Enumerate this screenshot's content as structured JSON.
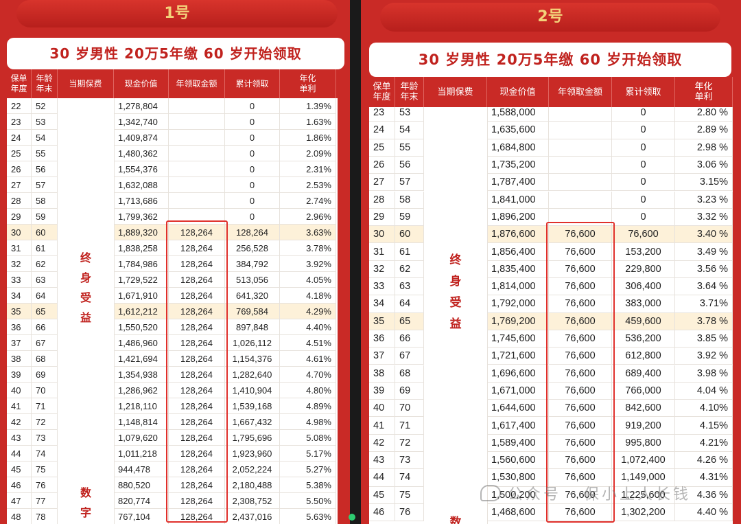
{
  "panels": [
    {
      "plan_label": "1号",
      "subtitle": "30 岁男性  20万5年缴  60 岁开始领取",
      "columns": [
        "保单\n年度",
        "年龄\n年末",
        "当期保费",
        "现金价值",
        "年领取金额",
        "累计领取",
        "年化\n单利"
      ],
      "premium_label": [
        "终",
        "身",
        "受",
        "益"
      ],
      "premium_label2": [
        "数",
        "字"
      ],
      "rows": [
        [
          "22",
          "52",
          "1,278,804",
          "",
          "0",
          "1.39%"
        ],
        [
          "23",
          "53",
          "1,342,740",
          "",
          "0",
          "1.63%"
        ],
        [
          "24",
          "54",
          "1,409,874",
          "",
          "0",
          "1.86%"
        ],
        [
          "25",
          "55",
          "1,480,362",
          "",
          "0",
          "2.09%"
        ],
        [
          "26",
          "56",
          "1,554,376",
          "",
          "0",
          "2.31%"
        ],
        [
          "27",
          "57",
          "1,632,088",
          "",
          "0",
          "2.53%"
        ],
        [
          "28",
          "58",
          "1,713,686",
          "",
          "0",
          "2.74%"
        ],
        [
          "29",
          "59",
          "1,799,362",
          "",
          "0",
          "2.96%"
        ],
        [
          "30",
          "60",
          "1,889,320",
          "128,264",
          "128,264",
          "3.63%"
        ],
        [
          "31",
          "61",
          "1,838,258",
          "128,264",
          "256,528",
          "3.78%"
        ],
        [
          "32",
          "62",
          "1,784,986",
          "128,264",
          "384,792",
          "3.92%"
        ],
        [
          "33",
          "63",
          "1,729,522",
          "128,264",
          "513,056",
          "4.05%"
        ],
        [
          "34",
          "64",
          "1,671,910",
          "128,264",
          "641,320",
          "4.18%"
        ],
        [
          "35",
          "65",
          "1,612,212",
          "128,264",
          "769,584",
          "4.29%"
        ],
        [
          "36",
          "66",
          "1,550,520",
          "128,264",
          "897,848",
          "4.40%"
        ],
        [
          "37",
          "67",
          "1,486,960",
          "128,264",
          "1,026,112",
          "4.51%"
        ],
        [
          "38",
          "68",
          "1,421,694",
          "128,264",
          "1,154,376",
          "4.61%"
        ],
        [
          "39",
          "69",
          "1,354,938",
          "128,264",
          "1,282,640",
          "4.70%"
        ],
        [
          "40",
          "70",
          "1,286,962",
          "128,264",
          "1,410,904",
          "4.80%"
        ],
        [
          "41",
          "71",
          "1,218,110",
          "128,264",
          "1,539,168",
          "4.89%"
        ],
        [
          "42",
          "72",
          "1,148,814",
          "128,264",
          "1,667,432",
          "4.98%"
        ],
        [
          "43",
          "73",
          "1,079,620",
          "128,264",
          "1,795,696",
          "5.08%"
        ],
        [
          "44",
          "74",
          "1,011,218",
          "128,264",
          "1,923,960",
          "5.17%"
        ],
        [
          "45",
          "75",
          "944,478",
          "128,264",
          "2,052,224",
          "5.27%"
        ],
        [
          "46",
          "76",
          "880,520",
          "128,264",
          "2,180,488",
          "5.38%"
        ],
        [
          "47",
          "77",
          "820,774",
          "128,264",
          "2,308,752",
          "5.50%"
        ],
        [
          "48",
          "78",
          "767,104",
          "128,264",
          "2,437,016",
          "5.63%"
        ]
      ]
    },
    {
      "plan_label": "2号",
      "subtitle": "30 岁男性  20万5年缴  60 岁开始领取",
      "columns": [
        "保单\n年度",
        "年龄\n年末",
        "当期保费",
        "现金价值",
        "年领取金额",
        "累计领取",
        "年化\n单利"
      ],
      "premium_label": [
        "终",
        "身",
        "受",
        "益"
      ],
      "premium_label2": [
        "数"
      ],
      "rows": [
        [
          "23",
          "53",
          "1,588,000",
          "",
          "0",
          "2.80 %"
        ],
        [
          "24",
          "54",
          "1,635,600",
          "",
          "0",
          "2.89 %"
        ],
        [
          "25",
          "55",
          "1,684,800",
          "",
          "0",
          "2.98 %"
        ],
        [
          "26",
          "56",
          "1,735,200",
          "",
          "0",
          "3.06 %"
        ],
        [
          "27",
          "57",
          "1,787,400",
          "",
          "0",
          "3.15%"
        ],
        [
          "28",
          "58",
          "1,841,000",
          "",
          "0",
          "3.23 %"
        ],
        [
          "29",
          "59",
          "1,896,200",
          "",
          "0",
          "3.32 %"
        ],
        [
          "30",
          "60",
          "1,876,600",
          "76,600",
          "76,600",
          "3.40 %"
        ],
        [
          "31",
          "61",
          "1,856,400",
          "76,600",
          "153,200",
          "3.49 %"
        ],
        [
          "32",
          "62",
          "1,835,400",
          "76,600",
          "229,800",
          "3.56 %"
        ],
        [
          "33",
          "63",
          "1,814,000",
          "76,600",
          "306,400",
          "3.64 %"
        ],
        [
          "34",
          "64",
          "1,792,000",
          "76,600",
          "383,000",
          "3.71%"
        ],
        [
          "35",
          "65",
          "1,769,200",
          "76,600",
          "459,600",
          "3.78 %"
        ],
        [
          "36",
          "66",
          "1,745,600",
          "76,600",
          "536,200",
          "3.85 %"
        ],
        [
          "37",
          "67",
          "1,721,600",
          "76,600",
          "612,800",
          "3.92 %"
        ],
        [
          "38",
          "68",
          "1,696,600",
          "76,600",
          "689,400",
          "3.98 %"
        ],
        [
          "39",
          "69",
          "1,671,000",
          "76,600",
          "766,000",
          "4.04 %"
        ],
        [
          "40",
          "70",
          "1,644,600",
          "76,600",
          "842,600",
          "4.10%"
        ],
        [
          "41",
          "71",
          "1,617,400",
          "76,600",
          "919,200",
          "4.15%"
        ],
        [
          "42",
          "72",
          "1,589,400",
          "76,600",
          "995,800",
          "4.21%"
        ],
        [
          "43",
          "73",
          "1,560,600",
          "76,600",
          "1,072,400",
          "4.26 %"
        ],
        [
          "44",
          "74",
          "1,530,800",
          "76,600",
          "1,149,000",
          "4.31%"
        ],
        [
          "45",
          "75",
          "1,500,200",
          "76,600",
          "1,225,600",
          "4.36 %"
        ],
        [
          "46",
          "76",
          "1,468,600",
          "76,600",
          "1,302,200",
          "4.40 %"
        ]
      ]
    }
  ],
  "watermark": "公众号 · 保小上人长钱",
  "colors": {
    "brand_red": "#c92a26",
    "gold": "#f3d27a",
    "highlight_row": "#fdf1d9",
    "box_red": "#e0302b"
  }
}
